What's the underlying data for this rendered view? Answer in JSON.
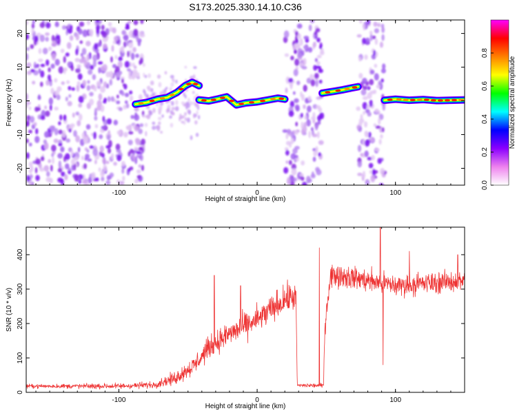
{
  "title": "S173.2025.330.14.10.C36",
  "chart_data": [
    {
      "type": "heatmap",
      "name": "spectrogram",
      "xlabel": "Height of straight line (km)",
      "ylabel": "Frequency (Hz)",
      "xlim": [
        -167,
        150
      ],
      "ylim": [
        -25,
        24
      ],
      "xticks": [
        -100,
        0,
        100
      ],
      "xtick_labels": [
        "-100",
        "0",
        "100"
      ],
      "yticks": [
        -20,
        -10,
        0,
        10,
        20
      ],
      "ytick_labels": [
        "-20",
        "-10",
        "0",
        "10",
        "20"
      ],
      "noise_bands": [
        [
          -167,
          -82
        ],
        [
          20,
          47
        ],
        [
          73,
          92
        ]
      ],
      "signal_segments": [
        {
          "x": [
            -88,
            -80,
            -72,
            -65,
            -58,
            -52,
            -47,
            -42
          ],
          "y": [
            -1,
            -0.5,
            0.5,
            1,
            2.5,
            4.5,
            5.5,
            4.5
          ]
        },
        {
          "x": [
            -42,
            -35,
            -28,
            -22,
            -15,
            -8,
            0,
            8,
            15,
            20
          ],
          "y": [
            0.3,
            0,
            0.6,
            1.2,
            -1.2,
            -0.6,
            -0.3,
            0.3,
            0.8,
            0.5
          ]
        },
        {
          "x": [
            47,
            55,
            62,
            68,
            73
          ],
          "y": [
            2.3,
            2.8,
            3.3,
            3.8,
            4.2
          ]
        },
        {
          "x": [
            92,
            100,
            110,
            120,
            130,
            140,
            150
          ],
          "y": [
            0.2,
            0.5,
            0.2,
            0.4,
            0.1,
            0.2,
            0.3
          ]
        }
      ],
      "colorbar": {
        "label": "Normalized spectral amplitude",
        "range": [
          0.0,
          1.0
        ],
        "ticks": [
          0.0,
          0.2,
          0.4,
          0.6,
          0.8
        ],
        "tick_labels": [
          "0.0",
          "0.2",
          "0.4",
          "0.6",
          "0.8"
        ],
        "colors": [
          "#ffffff",
          "#ee82ee",
          "#8b00ff",
          "#0000ff",
          "#00ffff",
          "#00ff00",
          "#ffff00",
          "#ff8000",
          "#ff0000",
          "#ff00ff"
        ]
      }
    },
    {
      "type": "line",
      "name": "snr",
      "xlabel": "Height of straight line (km)",
      "ylabel": "SNR (10 * v/v)",
      "xlim": [
        -167,
        150
      ],
      "ylim": [
        0,
        480
      ],
      "xticks": [
        -100,
        0,
        100
      ],
      "xtick_labels": [
        "-100",
        "0",
        "100"
      ],
      "yticks": [
        0,
        100,
        200,
        300,
        400
      ],
      "ytick_labels": [
        "0",
        "100",
        "200",
        "300",
        "400"
      ],
      "color": "#ee3333",
      "trend_x": [
        -167,
        -100,
        -75,
        -60,
        -45,
        -35,
        -20,
        0,
        20,
        28,
        29,
        48,
        49,
        53,
        60,
        100,
        150
      ],
      "trend_y": [
        18,
        18,
        22,
        40,
        80,
        130,
        170,
        210,
        270,
        280,
        20,
        20,
        200,
        340,
        340,
        310,
        325
      ],
      "noise_x": [
        -167,
        -75,
        -40,
        0,
        28,
        29,
        48,
        49,
        150
      ],
      "noise_y": [
        8,
        14,
        45,
        60,
        60,
        9,
        9,
        50,
        45
      ],
      "spikes": [
        [
          -31,
          340
        ],
        [
          -12,
          310
        ],
        [
          89,
          480
        ],
        [
          91,
          80
        ],
        [
          45,
          420
        ],
        [
          110,
          410
        ],
        [
          145,
          400
        ]
      ]
    }
  ]
}
